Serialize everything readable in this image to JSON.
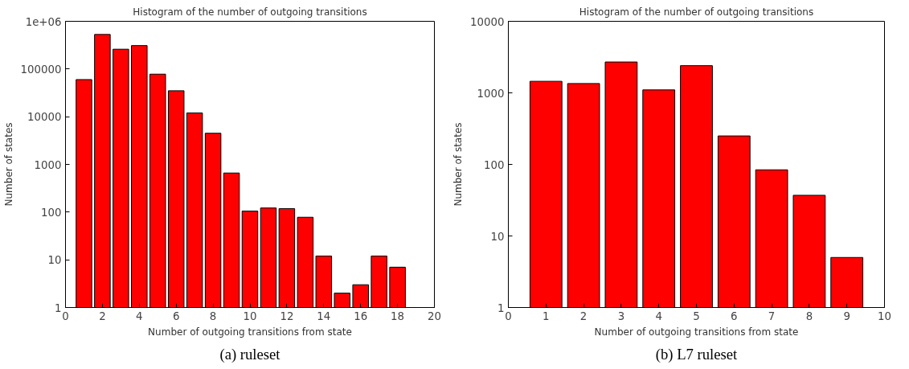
{
  "chart_data": [
    {
      "type": "bar",
      "title": "Histogram of the number of outgoing transitions",
      "xlabel": "Number of outgoing transitions from state",
      "ylabel": "Number of states",
      "x": [
        1,
        2,
        3,
        4,
        5,
        6,
        7,
        8,
        9,
        10,
        11,
        12,
        13,
        14,
        15,
        16,
        17,
        18
      ],
      "values": [
        60000,
        530000,
        260000,
        310000,
        78000,
        35000,
        12000,
        4500,
        660,
        105,
        122,
        118,
        78,
        12,
        2,
        3,
        12,
        7
      ],
      "color": "#ff0000",
      "log": "y",
      "xlim": [
        0,
        20
      ],
      "xticks": [
        0,
        2,
        4,
        6,
        8,
        10,
        12,
        14,
        16,
        18,
        20
      ],
      "ylim": [
        1,
        1000000
      ],
      "yticks": [
        1,
        10,
        100,
        1000,
        10000,
        100000,
        {
          "value": 1000000,
          "label": "1e+06"
        }
      ],
      "grid": false,
      "annotations": [
        "(a) ruleset"
      ]
    },
    {
      "type": "bar",
      "title": "Histogram of the number of outgoing transitions",
      "xlabel": "Number of outgoing transitions from state",
      "ylabel": "Number of states",
      "x": [
        1,
        2,
        3,
        4,
        5,
        6,
        7,
        8,
        9
      ],
      "values": [
        1450,
        1350,
        2700,
        1100,
        2400,
        250,
        84,
        37,
        5
      ],
      "color": "#ff0000",
      "log": "y",
      "xlim": [
        0,
        10
      ],
      "xticks": [
        0,
        1,
        2,
        3,
        4,
        5,
        6,
        7,
        8,
        9,
        10
      ],
      "ylim": [
        1,
        10000
      ],
      "yticks": [
        1,
        10,
        100,
        1000,
        10000
      ],
      "grid": false,
      "annotations": [
        "(b) L7 ruleset"
      ]
    }
  ]
}
